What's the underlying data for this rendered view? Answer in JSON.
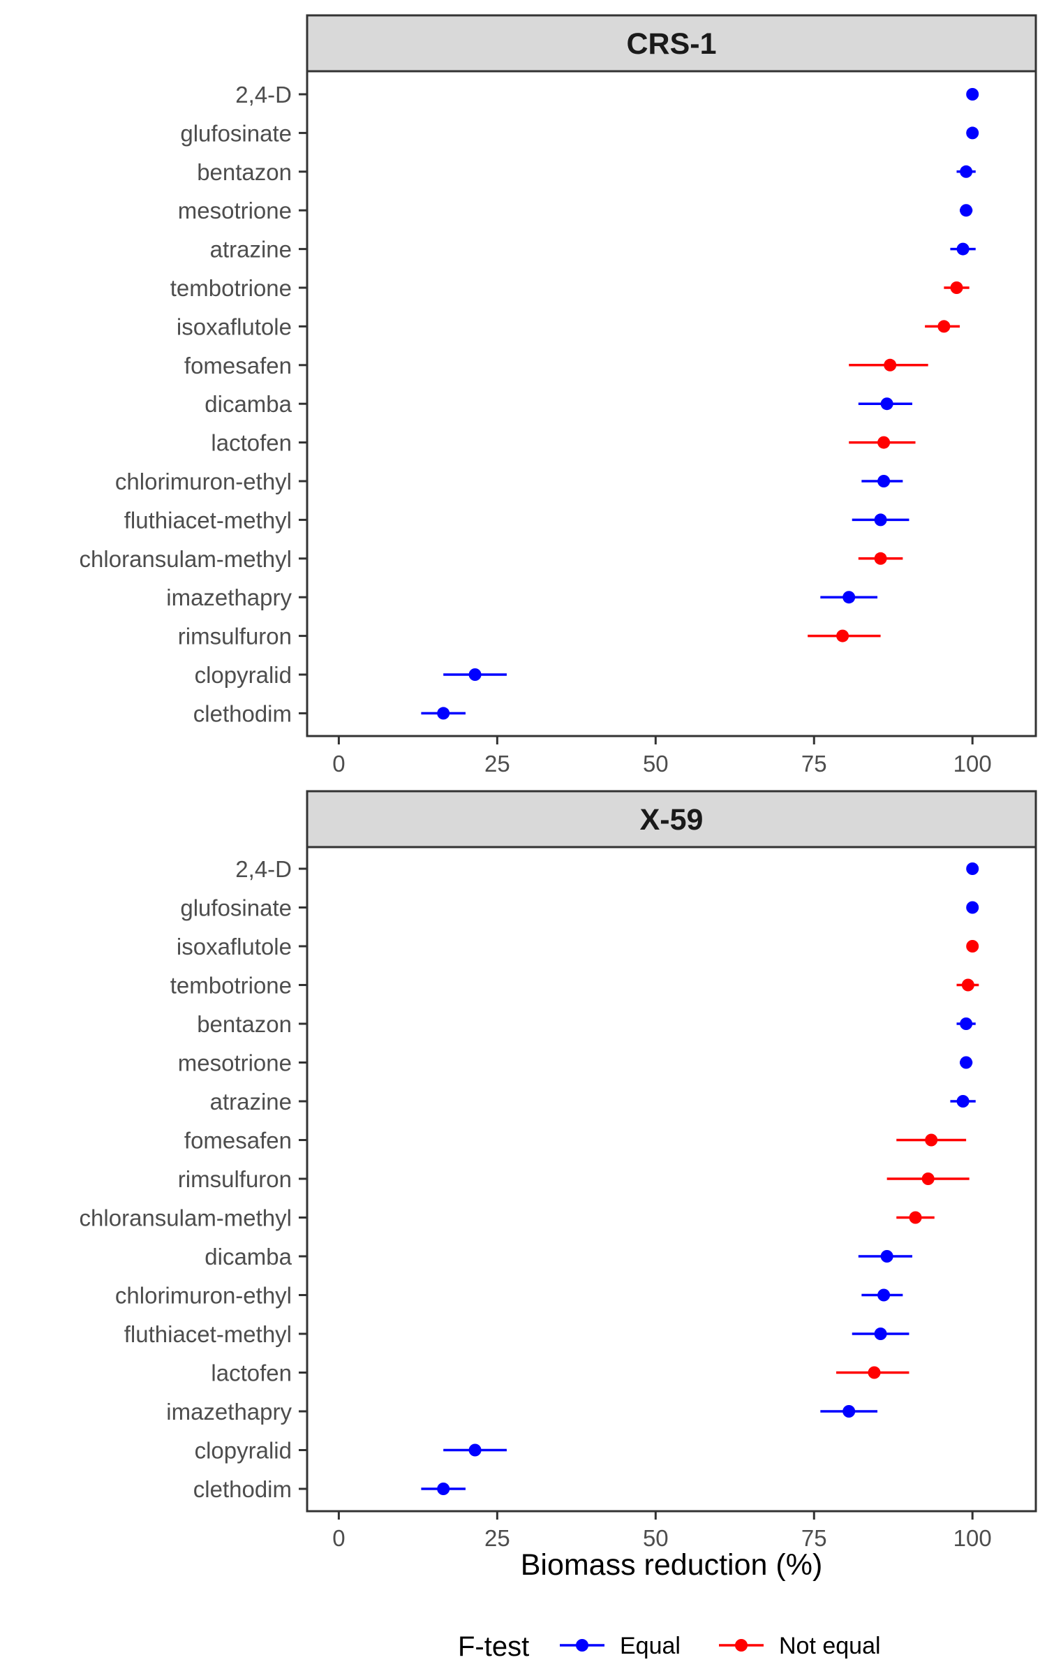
{
  "chart_data": {
    "type": "scatter",
    "subtype": "dot-with-error-bars",
    "xlabel": "Biomass reduction (%)",
    "xlim": [
      -5,
      110
    ],
    "xticks": [
      0,
      25,
      50,
      75,
      100
    ],
    "grid": false,
    "legend": {
      "title": "F-test",
      "position": "bottom",
      "entries": [
        {
          "label": "Equal",
          "color": "#0000ff"
        },
        {
          "label": "Not equal",
          "color": "#ff0000"
        }
      ]
    },
    "panels": [
      {
        "title": "CRS-1",
        "points": [
          {
            "label": "2,4-D",
            "value": 100,
            "lower": 100,
            "upper": 100,
            "ftest": "Equal"
          },
          {
            "label": "glufosinate",
            "value": 100,
            "lower": 100,
            "upper": 100,
            "ftest": "Equal"
          },
          {
            "label": "bentazon",
            "value": 99,
            "lower": 97.5,
            "upper": 100.5,
            "ftest": "Equal"
          },
          {
            "label": "mesotrione",
            "value": 99,
            "lower": 98,
            "upper": 100,
            "ftest": "Equal"
          },
          {
            "label": "atrazine",
            "value": 98.5,
            "lower": 96.5,
            "upper": 100.5,
            "ftest": "Equal"
          },
          {
            "label": "tembotrione",
            "value": 97.5,
            "lower": 95.5,
            "upper": 99.5,
            "ftest": "Not equal"
          },
          {
            "label": "isoxaflutole",
            "value": 95.5,
            "lower": 92.5,
            "upper": 98,
            "ftest": "Not equal"
          },
          {
            "label": "fomesafen",
            "value": 87,
            "lower": 80.5,
            "upper": 93,
            "ftest": "Not equal"
          },
          {
            "label": "dicamba",
            "value": 86.5,
            "lower": 82,
            "upper": 90.5,
            "ftest": "Equal"
          },
          {
            "label": "lactofen",
            "value": 86,
            "lower": 80.5,
            "upper": 91,
            "ftest": "Not equal"
          },
          {
            "label": "chlorimuron-ethyl",
            "value": 86,
            "lower": 82.5,
            "upper": 89,
            "ftest": "Equal"
          },
          {
            "label": "fluthiacet-methyl",
            "value": 85.5,
            "lower": 81,
            "upper": 90,
            "ftest": "Equal"
          },
          {
            "label": "chloransulam-methyl",
            "value": 85.5,
            "lower": 82,
            "upper": 89,
            "ftest": "Not equal"
          },
          {
            "label": "imazethapry",
            "value": 80.5,
            "lower": 76,
            "upper": 85,
            "ftest": "Equal"
          },
          {
            "label": "rimsulfuron",
            "value": 79.5,
            "lower": 74,
            "upper": 85.5,
            "ftest": "Not equal"
          },
          {
            "label": "clopyralid",
            "value": 21.5,
            "lower": 16.5,
            "upper": 26.5,
            "ftest": "Equal"
          },
          {
            "label": "clethodim",
            "value": 16.5,
            "lower": 13,
            "upper": 20,
            "ftest": "Equal"
          }
        ]
      },
      {
        "title": "X-59",
        "points": [
          {
            "label": "2,4-D",
            "value": 100,
            "lower": 100,
            "upper": 100,
            "ftest": "Equal"
          },
          {
            "label": "glufosinate",
            "value": 100,
            "lower": 100,
            "upper": 100,
            "ftest": "Equal"
          },
          {
            "label": "isoxaflutole",
            "value": 100,
            "lower": 100,
            "upper": 100,
            "ftest": "Not equal"
          },
          {
            "label": "tembotrione",
            "value": 99.3,
            "lower": 97.5,
            "upper": 101,
            "ftest": "Not equal"
          },
          {
            "label": "bentazon",
            "value": 99,
            "lower": 97.5,
            "upper": 100.5,
            "ftest": "Equal"
          },
          {
            "label": "mesotrione",
            "value": 99,
            "lower": 98,
            "upper": 100,
            "ftest": "Equal"
          },
          {
            "label": "atrazine",
            "value": 98.5,
            "lower": 96.5,
            "upper": 100.5,
            "ftest": "Equal"
          },
          {
            "label": "fomesafen",
            "value": 93.5,
            "lower": 88,
            "upper": 99,
            "ftest": "Not equal"
          },
          {
            "label": "rimsulfuron",
            "value": 93,
            "lower": 86.5,
            "upper": 99.5,
            "ftest": "Not equal"
          },
          {
            "label": "chloransulam-methyl",
            "value": 91,
            "lower": 88,
            "upper": 94,
            "ftest": "Not equal"
          },
          {
            "label": "dicamba",
            "value": 86.5,
            "lower": 82,
            "upper": 90.5,
            "ftest": "Equal"
          },
          {
            "label": "chlorimuron-ethyl",
            "value": 86,
            "lower": 82.5,
            "upper": 89,
            "ftest": "Equal"
          },
          {
            "label": "fluthiacet-methyl",
            "value": 85.5,
            "lower": 81,
            "upper": 90,
            "ftest": "Equal"
          },
          {
            "label": "lactofen",
            "value": 84.5,
            "lower": 78.5,
            "upper": 90,
            "ftest": "Not equal"
          },
          {
            "label": "imazethapry",
            "value": 80.5,
            "lower": 76,
            "upper": 85,
            "ftest": "Equal"
          },
          {
            "label": "clopyralid",
            "value": 21.5,
            "lower": 16.5,
            "upper": 26.5,
            "ftest": "Equal"
          },
          {
            "label": "clethodim",
            "value": 16.5,
            "lower": 13,
            "upper": 20,
            "ftest": "Equal"
          }
        ]
      }
    ]
  }
}
